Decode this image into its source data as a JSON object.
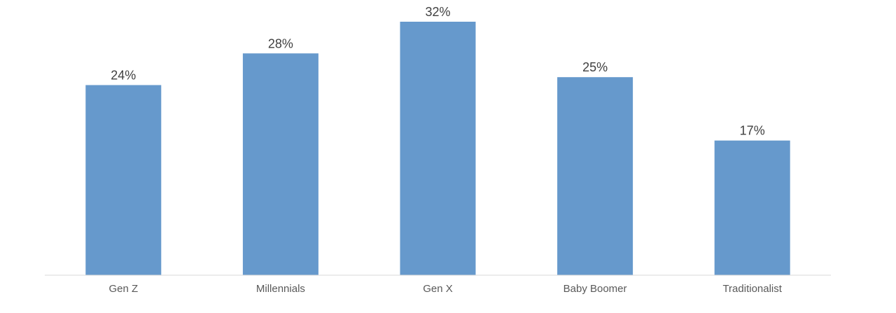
{
  "chart_data": {
    "type": "bar",
    "categories": [
      "Gen Z",
      "Millennials",
      "Gen X",
      "Baby Boomer",
      "Traditionalist"
    ],
    "values": [
      24,
      28,
      32,
      25,
      17
    ],
    "data_labels": [
      "24%",
      "28%",
      "32%",
      "25%",
      "17%"
    ],
    "unit": "%",
    "ylim": [
      0,
      32
    ],
    "grid": false,
    "legend": "none",
    "colors": {
      "bar": "#6699CC",
      "axis": "#D9D9D9",
      "data_label": "#404040",
      "tick_label": "#595959"
    }
  }
}
